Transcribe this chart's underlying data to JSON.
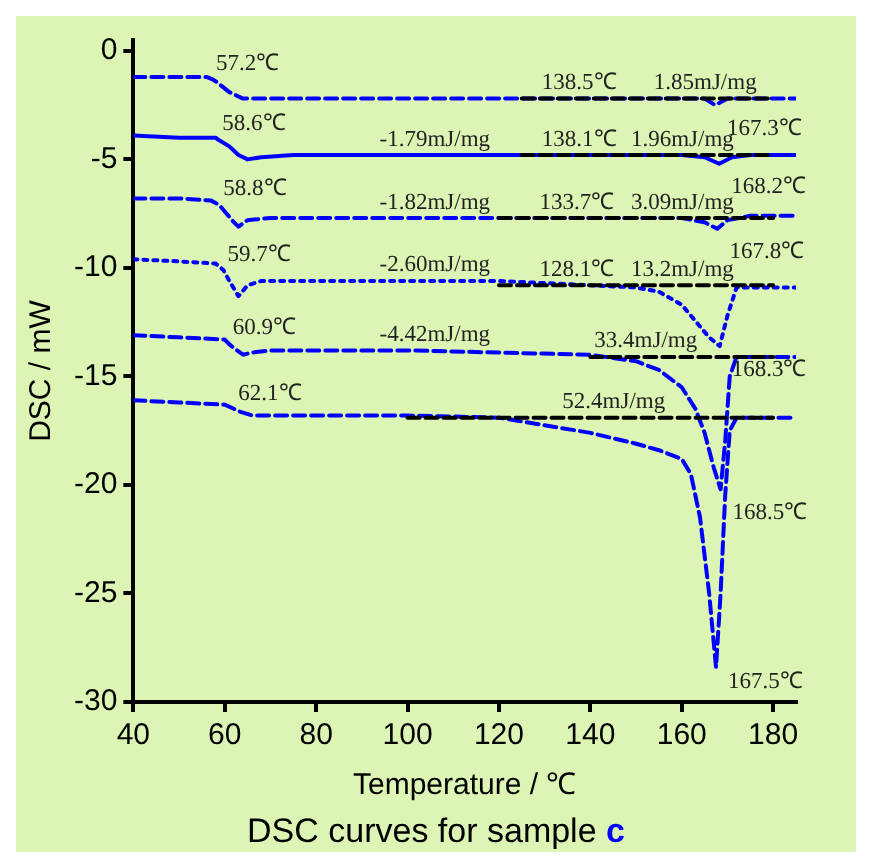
{
  "chart_data": {
    "type": "line",
    "title": "DSC curves for sample c",
    "xlabel": "Temperature / ℃",
    "ylabel": "DSC / mW",
    "xlim": [
      40,
      185
    ],
    "xticks": [
      40,
      60,
      80,
      100,
      120,
      140,
      160,
      180
    ],
    "ylim": [
      -30,
      0.5
    ],
    "yticks": [
      -30,
      -25,
      -20,
      -15,
      -10,
      -5,
      0
    ],
    "grid": false,
    "legend": false,
    "marker": "none",
    "series": [
      {
        "color": "#0000ff",
        "line_style": "dashed",
        "x": [
          40,
          50,
          56,
          57.2,
          58,
          61,
          64,
          70,
          100,
          140,
          160,
          165,
          167.3,
          170,
          175,
          185
        ],
        "values": [
          -1.2,
          -1.2,
          -1.2,
          -1.3,
          -1.4,
          -1.9,
          -2.2,
          -2.2,
          -2.2,
          -2.2,
          -2.2,
          -2.2,
          -2.5,
          -2.2,
          -2.2,
          -2.2
        ]
      },
      {
        "color": "#0000ff",
        "line_style": "solid",
        "x": [
          40,
          50,
          58,
          58.6,
          61,
          63,
          65,
          68,
          75,
          100,
          140,
          160,
          165,
          168.2,
          171,
          175,
          185
        ],
        "values": [
          -3.9,
          -4.0,
          -4.0,
          -4.1,
          -4.4,
          -4.8,
          -5.0,
          -4.9,
          -4.8,
          -4.8,
          -4.8,
          -4.8,
          -4.9,
          -5.2,
          -4.9,
          -4.8,
          -4.8
        ]
      },
      {
        "color": "#0000ff",
        "line_style": "dashed",
        "x": [
          40,
          50,
          57,
          58.8,
          60,
          62,
          63,
          65,
          70,
          100,
          140,
          160,
          165,
          167.8,
          170,
          175,
          185
        ],
        "values": [
          -6.8,
          -6.8,
          -6.9,
          -7.1,
          -7.4,
          -7.9,
          -8.1,
          -7.8,
          -7.7,
          -7.7,
          -7.7,
          -7.7,
          -7.9,
          -8.2,
          -7.8,
          -7.6,
          -7.6
        ]
      },
      {
        "color": "#0000ff",
        "line_style": "dotted",
        "x": [
          40,
          50,
          58,
          59.7,
          61,
          63,
          65,
          68,
          80,
          120,
          140,
          150,
          155,
          160,
          164,
          166,
          168.3,
          170,
          172,
          175,
          185
        ],
        "values": [
          -9.6,
          -9.7,
          -9.8,
          -10.1,
          -10.6,
          -11.3,
          -10.8,
          -10.6,
          -10.6,
          -10.6,
          -10.8,
          -10.9,
          -11.1,
          -11.7,
          -12.7,
          -13.2,
          -13.6,
          -12.2,
          -10.9,
          -10.9,
          -10.9
        ]
      },
      {
        "color": "#0000ff",
        "line_style": "dashed",
        "x": [
          40,
          50,
          60,
          60.9,
          62,
          64,
          66,
          70,
          100,
          140,
          150,
          155,
          160,
          163,
          165,
          167,
          168.5,
          169.5,
          170.5,
          172,
          175,
          185
        ],
        "values": [
          -13.1,
          -13.2,
          -13.3,
          -13.5,
          -13.7,
          -14.0,
          -13.9,
          -13.8,
          -13.8,
          -14.0,
          -14.3,
          -14.7,
          -15.5,
          -16.5,
          -17.6,
          -19.2,
          -20.2,
          -18.0,
          -15.0,
          -14.1,
          -14.1,
          -14.1
        ]
      },
      {
        "color": "#0000ff",
        "line_style": "dashed",
        "x": [
          40,
          50,
          60,
          62.1,
          63,
          66,
          70,
          100,
          120,
          140,
          150,
          155,
          160,
          162,
          164,
          166,
          167.5,
          168.5,
          169.5,
          170.5,
          172,
          175,
          185
        ],
        "values": [
          -16.1,
          -16.2,
          -16.3,
          -16.5,
          -16.6,
          -16.8,
          -16.8,
          -16.8,
          -16.9,
          -17.6,
          -18.1,
          -18.4,
          -18.8,
          -19.5,
          -21.5,
          -25,
          -28.4,
          -25,
          -20.5,
          -17.5,
          -16.9,
          -16.9,
          -16.9
        ]
      },
      {
        "color": "#000000",
        "line_style": "dashed",
        "x": [
          125,
          180
        ],
        "values": [
          -2.2,
          -2.2
        ]
      },
      {
        "color": "#000000",
        "line_style": "dashed",
        "x": [
          125,
          180
        ],
        "values": [
          -4.8,
          -4.8
        ]
      },
      {
        "color": "#000000",
        "line_style": "dashed",
        "x": [
          120,
          180
        ],
        "values": [
          -7.7,
          -7.7
        ]
      },
      {
        "color": "#000000",
        "line_style": "dashed",
        "x": [
          120,
          180
        ],
        "values": [
          -10.8,
          -10.8
        ]
      },
      {
        "color": "#000000",
        "line_style": "dashed",
        "x": [
          140,
          180
        ],
        "values": [
          -14.1,
          -14.1
        ]
      },
      {
        "color": "#000000",
        "line_style": "dashed",
        "x": [
          100,
          180
        ],
        "values": [
          -16.9,
          -16.9
        ]
      }
    ],
    "annotations": [
      {
        "text": "57.2℃",
        "x": 57.2,
        "y": -1.3
      },
      {
        "text": "58.6℃",
        "x": 58.6,
        "y": -4.1
      },
      {
        "text": "58.8℃",
        "x": 58.8,
        "y": -7.1
      },
      {
        "text": "59.7℃",
        "x": 59.7,
        "y": -10.1
      },
      {
        "text": "60.9℃",
        "x": 60.9,
        "y": -13.5
      },
      {
        "text": "62.1℃",
        "x": 62.1,
        "y": -16.5
      },
      {
        "text": "-1.79mJ/mg",
        "x": 93,
        "y": -4.8
      },
      {
        "text": "-1.82mJ/mg",
        "x": 93,
        "y": -7.7
      },
      {
        "text": "-2.60mJ/mg",
        "x": 93,
        "y": -10.6
      },
      {
        "text": "-4.42mJ/mg",
        "x": 93,
        "y": -13.8
      },
      {
        "text": "138.5℃",
        "x": 128.5,
        "y": -2.2
      },
      {
        "text": "1.85mJ/mg",
        "x": 153,
        "y": -2.2
      },
      {
        "text": "138.1℃",
        "x": 128.5,
        "y": -4.8
      },
      {
        "text": "1.96mJ/mg",
        "x": 148,
        "y": -4.8
      },
      {
        "text": "133.7℃",
        "x": 128,
        "y": -7.7
      },
      {
        "text": "3.09mJ/mg",
        "x": 148,
        "y": -7.7
      },
      {
        "text": "128.1℃",
        "x": 128,
        "y": -10.8
      },
      {
        "text": "13.2mJ/mg",
        "x": 148,
        "y": -10.8
      },
      {
        "text": "33.4mJ/mg",
        "x": 140,
        "y": -14.1
      },
      {
        "text": "52.4mJ/mg",
        "x": 133,
        "y": -16.9
      },
      {
        "text": "167.3℃",
        "x": 167.3,
        "y": -2.5
      },
      {
        "text": "168.2℃",
        "x": 168.2,
        "y": -5.2
      },
      {
        "text": "167.8℃",
        "x": 167.8,
        "y": -8.2
      },
      {
        "text": "168.3℃",
        "x": 168.3,
        "y": -13.6
      },
      {
        "text": "168.5℃",
        "x": 168.5,
        "y": -20.2
      },
      {
        "text": "167.5℃",
        "x": 167.5,
        "y": -28.4
      }
    ]
  }
}
